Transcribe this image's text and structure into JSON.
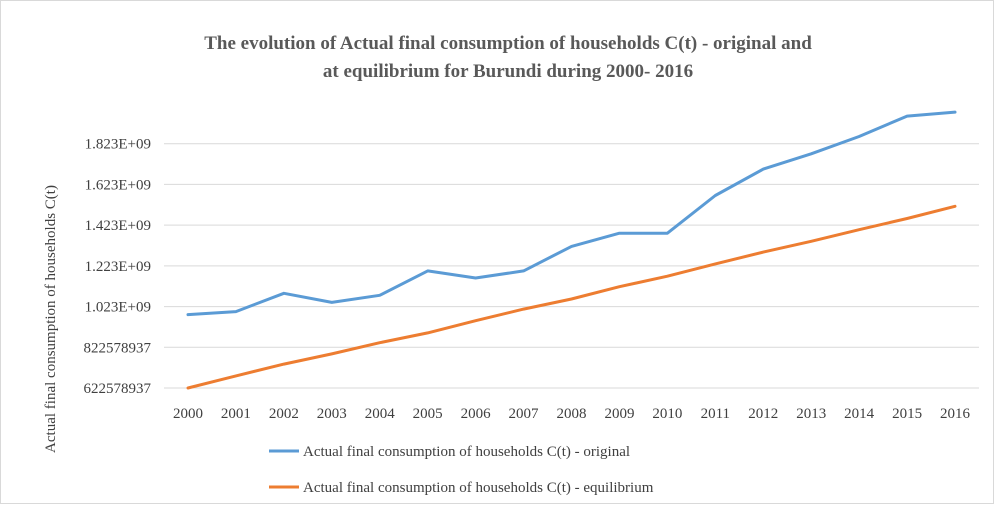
{
  "chart_data": {
    "type": "line",
    "title_line1": "The evolution of Actual final consumption of households C(t) - original and",
    "title_line2": "at equilibrium for Burundi during 2000- 2016",
    "xlabel": "",
    "ylabel": "Actual final consumption of households C(t)",
    "x": [
      "2000",
      "2001",
      "2002",
      "2003",
      "2004",
      "2005",
      "2006",
      "2007",
      "2008",
      "2009",
      "2010",
      "2011",
      "2012",
      "2013",
      "2014",
      "2015",
      "2016"
    ],
    "y_ticks": [
      {
        "value": 622578937,
        "label": "622578937"
      },
      {
        "value": 822578937,
        "label": "822578937"
      },
      {
        "value": 1022578937,
        "label": "1.023E+09"
      },
      {
        "value": 1222578937,
        "label": "1.223E+09"
      },
      {
        "value": 1422578937,
        "label": "1.423E+09"
      },
      {
        "value": 1622578937,
        "label": "1.623E+09"
      },
      {
        "value": 1822578937,
        "label": "1.823E+09"
      }
    ],
    "ylim": [
      622578937,
      2022578937
    ],
    "grid": true,
    "legend_position": "bottom",
    "series": [
      {
        "name": "Actual final consumption of households C(t) - original",
        "color": "#5b9bd5",
        "values": [
          983000000,
          998000000,
          1088000000,
          1043000000,
          1078000000,
          1198000000,
          1163000000,
          1198000000,
          1318000000,
          1383000000,
          1383000000,
          1568000000,
          1698000000,
          1773000000,
          1858000000,
          1958000000,
          1978000000
        ]
      },
      {
        "name": "Actual final consumption of households C(t) - equilibrium",
        "color": "#ed7d31",
        "values": [
          622578937,
          682000000,
          740000000,
          790000000,
          845000000,
          893000000,
          953000000,
          1010000000,
          1060000000,
          1120000000,
          1172000000,
          1232000000,
          1290000000,
          1343000000,
          1400000000,
          1455000000,
          1515000000
        ]
      }
    ]
  }
}
